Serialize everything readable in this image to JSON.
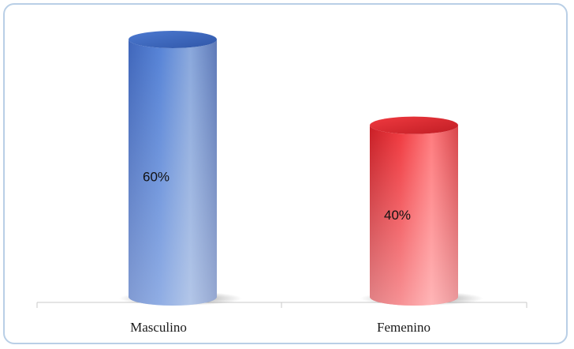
{
  "chart_data": {
    "type": "bar",
    "style": "3d-cylinder",
    "title": "",
    "xlabel": "",
    "ylabel": "",
    "categories": [
      "Masculino",
      "Femenino"
    ],
    "values": [
      60,
      40
    ],
    "data_labels": [
      "60%",
      "40%"
    ],
    "ylim": [
      0,
      60
    ],
    "grid": false,
    "legend": "none",
    "colors": [
      "#4a73c6",
      "#e8383d"
    ]
  }
}
